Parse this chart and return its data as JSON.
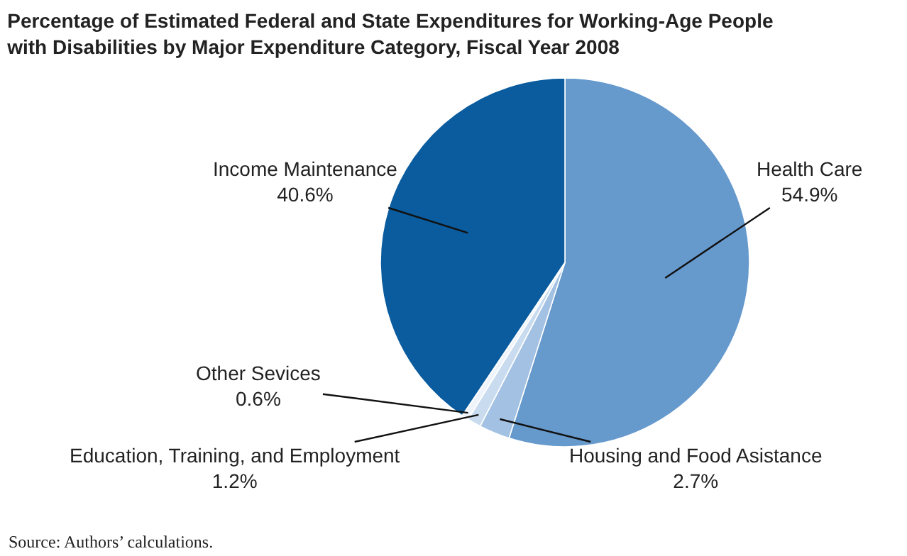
{
  "chart_data": {
    "type": "pie",
    "title": "Percentage of Estimated Federal and State Expenditures for Working-Age People\nwith Disabilities by Major Expenditure Category, Fiscal Year 2008",
    "categories": [
      "Health Care",
      "Housing and Food Asistance",
      "Education, Training, and Employment",
      "Other Sevices",
      "Income Maintenance"
    ],
    "values": [
      54.9,
      2.7,
      1.2,
      0.6,
      40.6
    ],
    "value_labels": [
      "54.9%",
      "2.7%",
      "1.2%",
      "0.6%",
      "40.6%"
    ],
    "colors": [
      "#6699cc",
      "#a3c1e2",
      "#c8dbef",
      "#eef4fa",
      "#0a5c9e"
    ],
    "annotations": [
      "Source: Authors’ calculations."
    ],
    "legend": false
  }
}
